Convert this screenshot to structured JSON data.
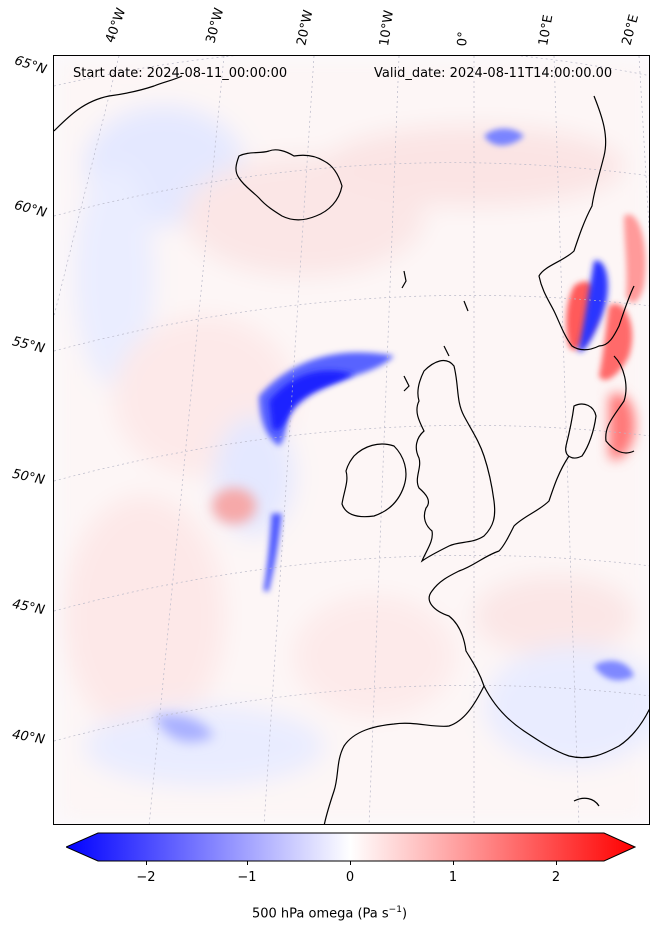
{
  "header": {
    "start_date": "Start date: 2024-08-11_00:00:00",
    "valid_date": "Valid_date: 2024-08-11T14:00:00.00"
  },
  "lon_labels": [
    "40°W",
    "30°W",
    "20°W",
    "10°W",
    "0°",
    "10°E",
    "20°E"
  ],
  "lat_labels": [
    "65°N",
    "60°N",
    "55°N",
    "50°N",
    "45°N",
    "40°N"
  ],
  "colorbar": {
    "ticks": [
      "−2",
      "−1",
      "0",
      "1",
      "2"
    ],
    "label": "500 hPa omega (Pa s",
    "label_sup": "−1",
    "label_end": ")",
    "min_color": "#0000ff",
    "mid_color": "#ffffff",
    "max_color": "#ff0000"
  },
  "colors": {
    "coastline": "#000000",
    "gridline": "#b0b0b0",
    "negative": "#1f2bff",
    "positive": "#ff4040"
  }
}
